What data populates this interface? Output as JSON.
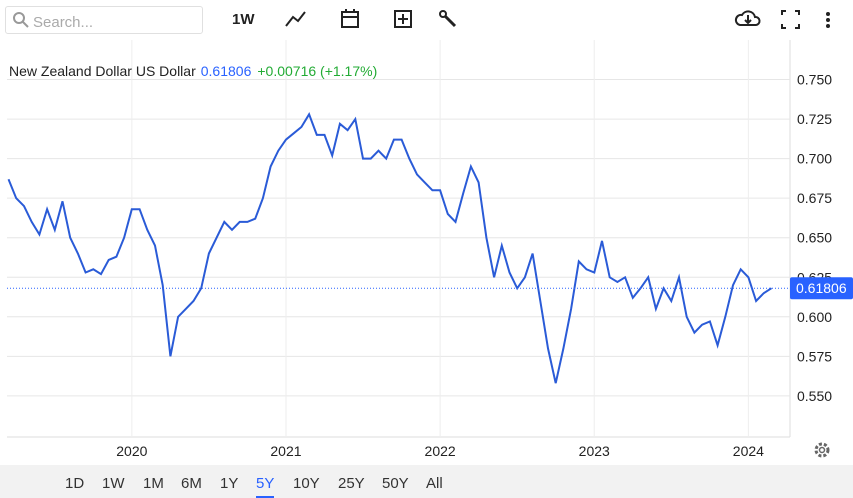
{
  "toolbar": {
    "search_placeholder": "Search...",
    "interval": "1W"
  },
  "chart_data": {
    "type": "line",
    "title": "New Zealand Dollar US Dollar",
    "last_value": 0.61806,
    "change_label": "+0.00716 (+1.17%)",
    "x": [
      2019.2,
      2019.25,
      2019.3,
      2019.35,
      2019.4,
      2019.45,
      2019.5,
      2019.55,
      2019.6,
      2019.65,
      2019.7,
      2019.75,
      2019.8,
      2019.85,
      2019.9,
      2019.95,
      2020.0,
      2020.05,
      2020.1,
      2020.15,
      2020.2,
      2020.25,
      2020.3,
      2020.35,
      2020.4,
      2020.45,
      2020.5,
      2020.55,
      2020.6,
      2020.65,
      2020.7,
      2020.75,
      2020.8,
      2020.85,
      2020.9,
      2020.95,
      2021.0,
      2021.05,
      2021.1,
      2021.15,
      2021.2,
      2021.25,
      2021.3,
      2021.35,
      2021.4,
      2021.45,
      2021.5,
      2021.55,
      2021.6,
      2021.65,
      2021.7,
      2021.75,
      2021.8,
      2021.85,
      2021.9,
      2021.95,
      2022.0,
      2022.05,
      2022.1,
      2022.15,
      2022.2,
      2022.25,
      2022.3,
      2022.35,
      2022.4,
      2022.45,
      2022.5,
      2022.55,
      2022.6,
      2022.65,
      2022.7,
      2022.75,
      2022.8,
      2022.85,
      2022.9,
      2022.95,
      2023.0,
      2023.05,
      2023.1,
      2023.15,
      2023.2,
      2023.25,
      2023.3,
      2023.35,
      2023.4,
      2023.45,
      2023.5,
      2023.55,
      2023.6,
      2023.65,
      2023.7,
      2023.75,
      2023.8,
      2023.85,
      2023.9,
      2023.95,
      2024.0,
      2024.05,
      2024.1,
      2024.15
    ],
    "series": [
      {
        "name": "New Zealand Dollar US Dollar",
        "color": "#2a5bd7",
        "values": [
          0.687,
          0.675,
          0.67,
          0.66,
          0.652,
          0.668,
          0.655,
          0.673,
          0.65,
          0.64,
          0.628,
          0.63,
          0.627,
          0.636,
          0.638,
          0.65,
          0.668,
          0.668,
          0.655,
          0.645,
          0.62,
          0.575,
          0.6,
          0.605,
          0.61,
          0.618,
          0.64,
          0.65,
          0.66,
          0.655,
          0.66,
          0.66,
          0.662,
          0.675,
          0.695,
          0.705,
          0.712,
          0.716,
          0.72,
          0.728,
          0.715,
          0.715,
          0.702,
          0.722,
          0.718,
          0.725,
          0.7,
          0.7,
          0.705,
          0.7,
          0.712,
          0.712,
          0.7,
          0.69,
          0.685,
          0.68,
          0.68,
          0.665,
          0.66,
          0.678,
          0.695,
          0.685,
          0.65,
          0.625,
          0.645,
          0.628,
          0.618,
          0.625,
          0.64,
          0.61,
          0.58,
          0.558,
          0.58,
          0.605,
          0.635,
          0.63,
          0.628,
          0.648,
          0.625,
          0.622,
          0.625,
          0.612,
          0.618,
          0.625,
          0.605,
          0.618,
          0.61,
          0.625,
          0.6,
          0.59,
          0.595,
          0.597,
          0.582,
          0.6,
          0.62,
          0.63,
          0.625,
          0.61,
          0.615,
          0.61806
        ]
      }
    ],
    "xlim": [
      2019.19,
      2024.27
    ],
    "xticks": [
      2020,
      2021,
      2022,
      2023,
      2024
    ],
    "ylim": [
      0.524,
      0.775
    ],
    "yticks": [
      {
        "value": 0.55,
        "label": "0.550"
      },
      0.575,
      {
        "value": 0.6,
        "label": "0.600"
      },
      0.625,
      {
        "value": 0.65,
        "label": "0.650"
      },
      0.675,
      {
        "value": 0.7,
        "label": "0.700"
      },
      0.725,
      {
        "value": 0.75,
        "label": "0.750"
      }
    ],
    "grid": true
  },
  "ranges": {
    "items": [
      "1D",
      "1W",
      "1M",
      "6M",
      "1Y",
      "5Y",
      "10Y",
      "25Y",
      "50Y",
      "All"
    ],
    "active": 5
  }
}
